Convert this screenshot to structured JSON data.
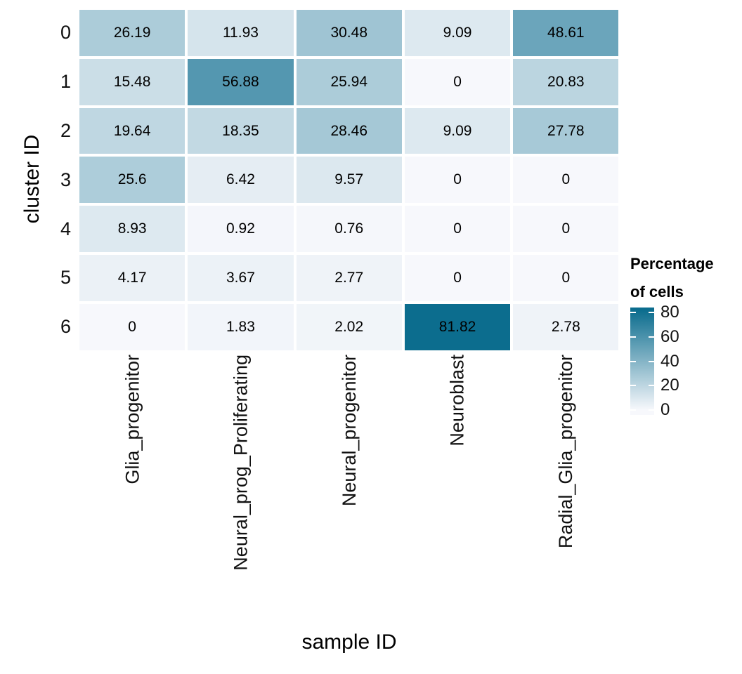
{
  "chart_data": {
    "type": "heatmap",
    "title": "",
    "xlabel": "sample ID",
    "ylabel": "cluster ID",
    "x_categories": [
      "Glia_progenitor",
      "Neural_prog_Proliferating",
      "Neural_progenitor",
      "Neuroblast",
      "Radial_Glia_progenitor"
    ],
    "y_categories": [
      "0",
      "1",
      "2",
      "3",
      "4",
      "5",
      "6"
    ],
    "rows": [
      [
        26.19,
        11.93,
        30.48,
        9.09,
        48.61
      ],
      [
        15.48,
        56.88,
        25.94,
        0,
        20.83
      ],
      [
        19.64,
        18.35,
        28.46,
        9.09,
        27.78
      ],
      [
        25.6,
        6.42,
        9.57,
        0,
        0
      ],
      [
        8.93,
        0.92,
        0.76,
        0,
        0
      ],
      [
        4.17,
        3.67,
        2.77,
        0,
        0
      ],
      [
        0,
        1.83,
        2.02,
        81.82,
        2.78
      ]
    ],
    "color_scale": {
      "low_color": "#f7f8fc",
      "high_color": "#0c6d8e",
      "low_value": 0,
      "high_value": 81.82
    },
    "legend": {
      "title_line1": "Percentage",
      "title_line2": "of cells",
      "ticks": [
        0,
        20,
        40,
        60,
        80
      ],
      "bar_value_range": [
        -4,
        84
      ],
      "position": "right"
    },
    "grid": false,
    "cell_text_color": "#000000",
    "axis_text_color": "#111111"
  }
}
